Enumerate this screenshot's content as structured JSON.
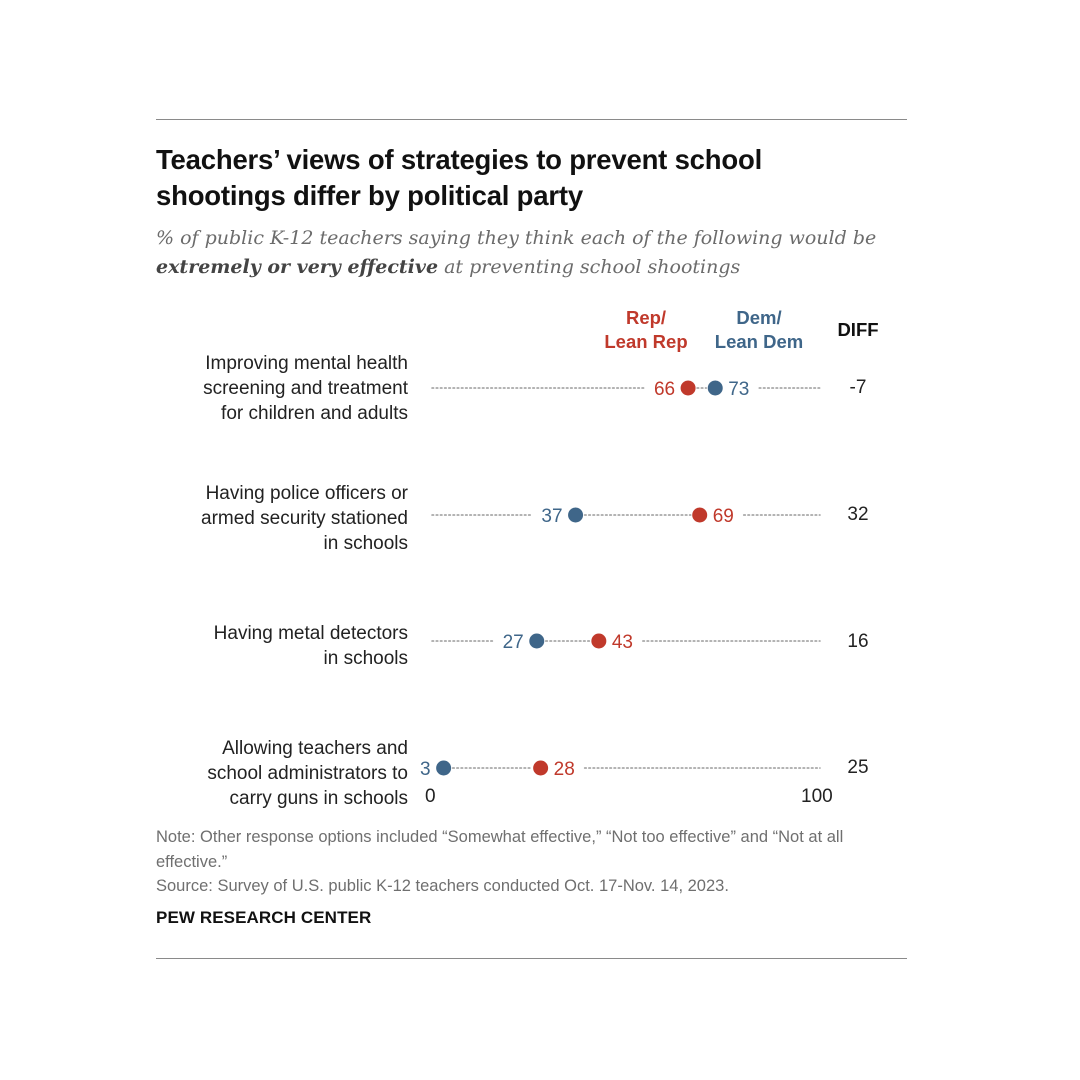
{
  "title": "Teachers’ views of strategies to prevent school shootings differ by political party",
  "subtitle": {
    "part1": "% of public K-12 teachers saying they think each of the following would be ",
    "emphasis": "extremely or very effective",
    "part2": " at preventing school shootings"
  },
  "headers": {
    "rep": "Rep/\nLean Rep",
    "dem": "Dem/\nLean Dem",
    "diff": "DIFF"
  },
  "colors": {
    "rep": "#c0392b",
    "dem": "#3f6689",
    "dots_line": "#9a9a9a"
  },
  "chart_data": {
    "type": "scatter",
    "subtype": "dot-plot",
    "xlim": [
      0,
      100
    ],
    "x_ticks": [
      "0",
      "100"
    ],
    "series": [
      {
        "name": "Rep/Lean Rep",
        "color": "#c0392b"
      },
      {
        "name": "Dem/Lean Dem",
        "color": "#3f6689"
      }
    ],
    "categories": [
      "Improving mental health\nscreening and treatment\nfor children and adults",
      "Having police officers or\narmed security stationed\nin schools",
      "Having metal detectors\nin schools",
      "Allowing teachers and\nschool administrators to\ncarry guns in schools"
    ],
    "rep": [
      66,
      69,
      43,
      28
    ],
    "dem": [
      73,
      37,
      27,
      3
    ],
    "diff": [
      "-7",
      "32",
      "16",
      "25"
    ]
  },
  "footer": {
    "note": "Note: Other response options included “Somewhat effective,” “Not too effective” and “Not at all effective.”",
    "source": "Source: Survey of U.S. public K-12 teachers conducted Oct. 17-Nov. 14, 2023.",
    "brand": "PEW RESEARCH CENTER"
  }
}
